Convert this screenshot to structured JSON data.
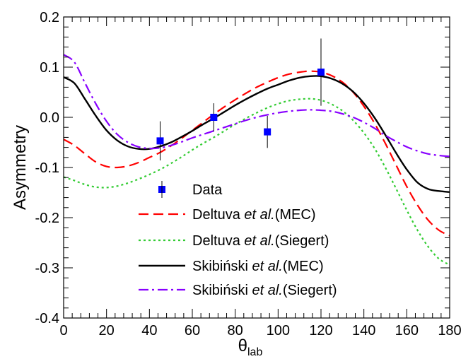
{
  "chart_data": {
    "type": "line",
    "ylabel": "Asymmetry",
    "xlabel_main": "θ",
    "xlabel_sub": "lab",
    "xlim": [
      0,
      180
    ],
    "ylim": [
      -0.4,
      0.2
    ],
    "x_ticks": [
      0,
      20,
      40,
      60,
      80,
      100,
      120,
      140,
      160,
      180
    ],
    "x_tick_labels": [
      "0",
      "20",
      "40",
      "60",
      "80",
      "100",
      "120",
      "140",
      "160",
      "180"
    ],
    "y_ticks": [
      -0.4,
      -0.3,
      -0.2,
      -0.1,
      0.0,
      0.1,
      0.2
    ],
    "y_tick_labels": [
      "-0.4",
      "-0.3",
      "-0.2",
      "-0.1",
      "0.0",
      "0.1",
      "0.2"
    ],
    "grid": false,
    "legend_position": "bottom-center",
    "data_points": {
      "name": "Data",
      "color": "#0000ff",
      "x": [
        45,
        70,
        95,
        120
      ],
      "y": [
        -0.047,
        0.0,
        -0.029,
        0.09
      ],
      "yerr": [
        0.039,
        0.028,
        0.032,
        0.067
      ]
    },
    "series": [
      {
        "name_pre": "Deltuva ",
        "name_ital": "et al.",
        "name_post": "(MEC)",
        "color": "#ff0000",
        "dash": "14,7",
        "width": 2.2,
        "x": [
          0,
          5,
          10,
          15,
          20,
          25,
          30,
          35,
          40,
          45,
          50,
          55,
          60,
          65,
          70,
          75,
          80,
          85,
          90,
          95,
          100,
          105,
          110,
          115,
          120,
          125,
          130,
          135,
          140,
          145,
          150,
          155,
          160,
          165,
          170,
          175,
          180
        ],
        "y": [
          -0.044,
          -0.056,
          -0.073,
          -0.089,
          -0.098,
          -0.1,
          -0.097,
          -0.09,
          -0.08,
          -0.07,
          -0.057,
          -0.042,
          -0.026,
          -0.01,
          0.006,
          0.021,
          0.035,
          0.048,
          0.06,
          0.07,
          0.079,
          0.086,
          0.09,
          0.092,
          0.09,
          0.083,
          0.07,
          0.05,
          0.022,
          -0.012,
          -0.052,
          -0.095,
          -0.138,
          -0.175,
          -0.205,
          -0.225,
          -0.236
        ]
      },
      {
        "name_pre": "Deltuva ",
        "name_ital": "et al.",
        "name_post": "(Siegert)",
        "color": "#33cc33",
        "dash": "3,4",
        "width": 2.2,
        "x": [
          0,
          5,
          10,
          15,
          20,
          25,
          30,
          35,
          40,
          45,
          50,
          55,
          60,
          65,
          70,
          75,
          80,
          85,
          90,
          95,
          100,
          105,
          110,
          115,
          120,
          125,
          130,
          135,
          140,
          145,
          150,
          155,
          160,
          165,
          170,
          175,
          180
        ],
        "y": [
          -0.119,
          -0.126,
          -0.134,
          -0.139,
          -0.14,
          -0.137,
          -0.131,
          -0.123,
          -0.114,
          -0.104,
          -0.092,
          -0.079,
          -0.065,
          -0.052,
          -0.04,
          -0.027,
          -0.014,
          -0.002,
          0.009,
          0.019,
          0.027,
          0.033,
          0.036,
          0.037,
          0.034,
          0.026,
          0.013,
          -0.006,
          -0.031,
          -0.062,
          -0.1,
          -0.142,
          -0.185,
          -0.225,
          -0.258,
          -0.282,
          -0.294
        ]
      },
      {
        "name_pre": "Skibiński ",
        "name_ital": "et al.",
        "name_post": "(MEC)",
        "color": "#000000",
        "dash": "",
        "width": 2.4,
        "x": [
          0,
          5,
          10,
          15,
          20,
          25,
          30,
          35,
          40,
          45,
          50,
          55,
          60,
          65,
          70,
          75,
          80,
          85,
          90,
          95,
          100,
          105,
          110,
          115,
          120,
          125,
          130,
          135,
          140,
          145,
          150,
          155,
          160,
          165,
          170,
          175,
          180
        ],
        "y": [
          0.08,
          0.068,
          0.036,
          0.003,
          -0.026,
          -0.046,
          -0.058,
          -0.063,
          -0.063,
          -0.058,
          -0.05,
          -0.039,
          -0.027,
          -0.014,
          -0.002,
          0.011,
          0.024,
          0.036,
          0.047,
          0.057,
          0.065,
          0.073,
          0.079,
          0.082,
          0.082,
          0.077,
          0.067,
          0.051,
          0.028,
          -0.001,
          -0.035,
          -0.071,
          -0.104,
          -0.13,
          -0.143,
          -0.147,
          -0.149
        ]
      },
      {
        "name_pre": "Skibiński ",
        "name_ital": "et al.",
        "name_post": "(Siegert)",
        "color": "#8800ff",
        "dash": "14,5,3,5",
        "width": 2.2,
        "x": [
          0,
          5,
          10,
          15,
          20,
          25,
          30,
          35,
          40,
          45,
          50,
          55,
          60,
          65,
          70,
          75,
          80,
          85,
          90,
          95,
          100,
          105,
          110,
          115,
          120,
          125,
          130,
          135,
          140,
          145,
          150,
          155,
          160,
          165,
          170,
          175,
          180
        ],
        "y": [
          0.125,
          0.11,
          0.068,
          0.027,
          -0.008,
          -0.034,
          -0.05,
          -0.059,
          -0.062,
          -0.061,
          -0.056,
          -0.049,
          -0.041,
          -0.034,
          -0.027,
          -0.02,
          -0.013,
          -0.006,
          0.0,
          0.005,
          0.009,
          0.012,
          0.014,
          0.015,
          0.014,
          0.012,
          0.007,
          0.0,
          -0.01,
          -0.022,
          -0.036,
          -0.048,
          -0.059,
          -0.067,
          -0.073,
          -0.076,
          -0.078
        ]
      }
    ]
  }
}
